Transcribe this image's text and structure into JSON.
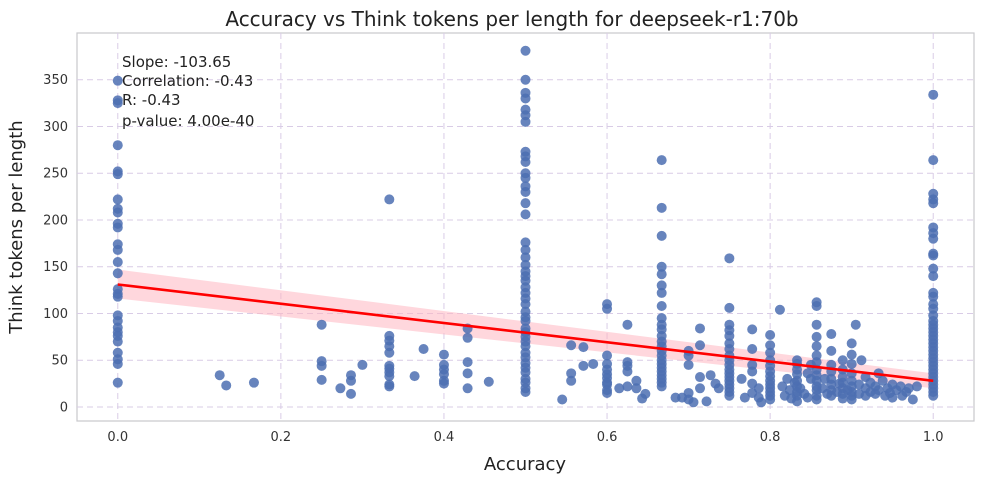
{
  "chart_data": {
    "type": "scatter",
    "title": "Accuracy vs Think tokens per length for deepseek-r1:70b",
    "xlabel": "Accuracy",
    "ylabel": "Think tokens per length",
    "xlim": [
      -0.05,
      1.05
    ],
    "ylim": [
      -15,
      400
    ],
    "xticks": [
      0.0,
      0.2,
      0.4,
      0.6,
      0.8,
      1.0
    ],
    "xtick_labels": [
      "0.0",
      "0.2",
      "0.4",
      "0.6",
      "0.8",
      "1.0"
    ],
    "yticks": [
      0,
      50,
      100,
      150,
      200,
      250,
      300,
      350
    ],
    "ytick_labels": [
      "0",
      "50",
      "100",
      "150",
      "200",
      "250",
      "300",
      "350"
    ],
    "grid": true,
    "stats": {
      "slope": "Slope: -103.65",
      "correlation": "Correlation: -0.43",
      "r": "R: -0.43",
      "pvalue": "p-value: 4.00e-40"
    },
    "point_color": "#4c6fb1",
    "regression": {
      "color": "#ff0000",
      "ci_color": "#ffb6c1",
      "x": [
        0.0,
        1.0
      ],
      "y": [
        131,
        28
      ],
      "ci_upper": [
        147,
        36
      ],
      "ci_lower": [
        116,
        20
      ]
    },
    "points": [
      [
        0.0,
        349
      ],
      [
        0.0,
        328
      ],
      [
        0.0,
        325
      ],
      [
        0.0,
        280
      ],
      [
        0.0,
        252
      ],
      [
        0.0,
        249
      ],
      [
        0.0,
        222
      ],
      [
        0.0,
        212
      ],
      [
        0.0,
        208
      ],
      [
        0.0,
        196
      ],
      [
        0.0,
        192
      ],
      [
        0.0,
        174
      ],
      [
        0.0,
        168
      ],
      [
        0.0,
        155
      ],
      [
        0.0,
        143
      ],
      [
        0.0,
        126
      ],
      [
        0.0,
        121
      ],
      [
        0.0,
        118
      ],
      [
        0.0,
        98
      ],
      [
        0.0,
        92
      ],
      [
        0.0,
        85
      ],
      [
        0.0,
        80
      ],
      [
        0.0,
        76
      ],
      [
        0.0,
        70
      ],
      [
        0.0,
        58
      ],
      [
        0.0,
        51
      ],
      [
        0.0,
        46
      ],
      [
        0.0,
        26
      ],
      [
        0.125,
        34
      ],
      [
        0.133,
        23
      ],
      [
        0.167,
        26
      ],
      [
        0.25,
        88
      ],
      [
        0.25,
        49
      ],
      [
        0.25,
        44
      ],
      [
        0.25,
        29
      ],
      [
        0.273,
        20
      ],
      [
        0.286,
        34
      ],
      [
        0.286,
        28
      ],
      [
        0.3,
        45
      ],
      [
        0.286,
        14
      ],
      [
        0.333,
        222
      ],
      [
        0.333,
        76
      ],
      [
        0.333,
        71
      ],
      [
        0.333,
        65
      ],
      [
        0.333,
        58
      ],
      [
        0.333,
        44
      ],
      [
        0.333,
        41
      ],
      [
        0.333,
        37
      ],
      [
        0.333,
        33
      ],
      [
        0.333,
        24
      ],
      [
        0.333,
        22
      ],
      [
        0.364,
        33
      ],
      [
        0.375,
        62
      ],
      [
        0.4,
        56
      ],
      [
        0.4,
        45
      ],
      [
        0.4,
        40
      ],
      [
        0.4,
        35
      ],
      [
        0.4,
        28
      ],
      [
        0.4,
        25
      ],
      [
        0.429,
        84
      ],
      [
        0.429,
        74
      ],
      [
        0.429,
        48
      ],
      [
        0.429,
        36
      ],
      [
        0.429,
        20
      ],
      [
        0.455,
        27
      ],
      [
        0.5,
        381
      ],
      [
        0.5,
        350
      ],
      [
        0.5,
        336
      ],
      [
        0.5,
        330
      ],
      [
        0.5,
        318
      ],
      [
        0.5,
        312
      ],
      [
        0.5,
        305
      ],
      [
        0.5,
        273
      ],
      [
        0.5,
        268
      ],
      [
        0.5,
        262
      ],
      [
        0.5,
        250
      ],
      [
        0.5,
        245
      ],
      [
        0.5,
        236
      ],
      [
        0.5,
        230
      ],
      [
        0.5,
        218
      ],
      [
        0.5,
        206
      ],
      [
        0.5,
        176
      ],
      [
        0.5,
        168
      ],
      [
        0.5,
        160
      ],
      [
        0.5,
        152
      ],
      [
        0.5,
        145
      ],
      [
        0.5,
        140
      ],
      [
        0.5,
        135
      ],
      [
        0.5,
        128
      ],
      [
        0.5,
        122
      ],
      [
        0.5,
        116
      ],
      [
        0.5,
        110
      ],
      [
        0.5,
        102
      ],
      [
        0.5,
        96
      ],
      [
        0.5,
        92
      ],
      [
        0.5,
        84
      ],
      [
        0.5,
        80
      ],
      [
        0.5,
        75
      ],
      [
        0.5,
        70
      ],
      [
        0.5,
        65
      ],
      [
        0.5,
        58
      ],
      [
        0.5,
        53
      ],
      [
        0.5,
        47
      ],
      [
        0.5,
        42
      ],
      [
        0.5,
        37
      ],
      [
        0.5,
        30
      ],
      [
        0.5,
        26
      ],
      [
        0.5,
        20
      ],
      [
        0.5,
        16
      ],
      [
        0.545,
        8
      ],
      [
        0.556,
        66
      ],
      [
        0.556,
        36
      ],
      [
        0.556,
        28
      ],
      [
        0.571,
        64
      ],
      [
        0.571,
        44
      ],
      [
        0.583,
        46
      ],
      [
        0.6,
        110
      ],
      [
        0.6,
        105
      ],
      [
        0.6,
        55
      ],
      [
        0.6,
        46
      ],
      [
        0.6,
        40
      ],
      [
        0.6,
        35
      ],
      [
        0.6,
        31
      ],
      [
        0.6,
        26
      ],
      [
        0.6,
        24
      ],
      [
        0.6,
        18
      ],
      [
        0.6,
        15
      ],
      [
        0.615,
        20
      ],
      [
        0.625,
        88
      ],
      [
        0.625,
        48
      ],
      [
        0.625,
        44
      ],
      [
        0.625,
        38
      ],
      [
        0.625,
        22
      ],
      [
        0.636,
        28
      ],
      [
        0.636,
        20
      ],
      [
        0.643,
        9
      ],
      [
        0.647,
        14
      ],
      [
        0.667,
        264
      ],
      [
        0.667,
        213
      ],
      [
        0.667,
        183
      ],
      [
        0.667,
        150
      ],
      [
        0.667,
        142
      ],
      [
        0.667,
        130
      ],
      [
        0.667,
        122
      ],
      [
        0.667,
        108
      ],
      [
        0.667,
        95
      ],
      [
        0.667,
        88
      ],
      [
        0.667,
        83
      ],
      [
        0.667,
        76
      ],
      [
        0.667,
        70
      ],
      [
        0.667,
        65
      ],
      [
        0.667,
        60
      ],
      [
        0.667,
        55
      ],
      [
        0.667,
        50
      ],
      [
        0.667,
        46
      ],
      [
        0.667,
        42
      ],
      [
        0.667,
        38
      ],
      [
        0.667,
        34
      ],
      [
        0.667,
        30
      ],
      [
        0.667,
        26
      ],
      [
        0.667,
        22
      ],
      [
        0.684,
        10
      ],
      [
        0.692,
        10
      ],
      [
        0.7,
        15
      ],
      [
        0.7,
        60
      ],
      [
        0.7,
        55
      ],
      [
        0.7,
        45
      ],
      [
        0.7,
        8
      ],
      [
        0.706,
        5
      ],
      [
        0.714,
        84
      ],
      [
        0.714,
        66
      ],
      [
        0.714,
        32
      ],
      [
        0.714,
        20
      ],
      [
        0.722,
        6
      ],
      [
        0.727,
        34
      ],
      [
        0.733,
        25
      ],
      [
        0.737,
        20
      ],
      [
        0.75,
        159
      ],
      [
        0.75,
        106
      ],
      [
        0.75,
        88
      ],
      [
        0.75,
        82
      ],
      [
        0.75,
        76
      ],
      [
        0.75,
        68
      ],
      [
        0.75,
        62
      ],
      [
        0.75,
        55
      ],
      [
        0.75,
        50
      ],
      [
        0.75,
        45
      ],
      [
        0.75,
        40
      ],
      [
        0.75,
        36
      ],
      [
        0.75,
        32
      ],
      [
        0.75,
        28
      ],
      [
        0.75,
        24
      ],
      [
        0.75,
        20
      ],
      [
        0.75,
        16
      ],
      [
        0.75,
        12
      ],
      [
        0.765,
        30
      ],
      [
        0.769,
        10
      ],
      [
        0.778,
        83
      ],
      [
        0.778,
        62
      ],
      [
        0.778,
        45
      ],
      [
        0.778,
        38
      ],
      [
        0.778,
        25
      ],
      [
        0.778,
        15
      ],
      [
        0.786,
        20
      ],
      [
        0.786,
        10
      ],
      [
        0.789,
        5
      ],
      [
        0.8,
        77
      ],
      [
        0.8,
        66
      ],
      [
        0.8,
        58
      ],
      [
        0.8,
        50
      ],
      [
        0.8,
        44
      ],
      [
        0.8,
        38
      ],
      [
        0.8,
        33
      ],
      [
        0.8,
        28
      ],
      [
        0.8,
        24
      ],
      [
        0.8,
        20
      ],
      [
        0.8,
        16
      ],
      [
        0.8,
        12
      ],
      [
        0.8,
        8
      ],
      [
        0.812,
        104
      ],
      [
        0.815,
        22
      ],
      [
        0.818,
        12
      ],
      [
        0.821,
        30
      ],
      [
        0.824,
        18
      ],
      [
        0.826,
        9
      ],
      [
        0.83,
        26
      ],
      [
        0.833,
        50
      ],
      [
        0.833,
        46
      ],
      [
        0.833,
        40
      ],
      [
        0.833,
        35
      ],
      [
        0.833,
        28
      ],
      [
        0.833,
        22
      ],
      [
        0.833,
        16
      ],
      [
        0.833,
        12
      ],
      [
        0.833,
        6
      ],
      [
        0.837,
        20
      ],
      [
        0.842,
        14
      ],
      [
        0.846,
        36
      ],
      [
        0.846,
        10
      ],
      [
        0.85,
        45
      ],
      [
        0.85,
        30
      ],
      [
        0.857,
        112
      ],
      [
        0.857,
        108
      ],
      [
        0.857,
        88
      ],
      [
        0.857,
        75
      ],
      [
        0.857,
        65
      ],
      [
        0.857,
        55
      ],
      [
        0.857,
        48
      ],
      [
        0.857,
        40
      ],
      [
        0.857,
        34
      ],
      [
        0.857,
        28
      ],
      [
        0.857,
        22
      ],
      [
        0.857,
        18
      ],
      [
        0.857,
        12
      ],
      [
        0.857,
        8
      ],
      [
        0.864,
        20
      ],
      [
        0.867,
        30
      ],
      [
        0.87,
        14
      ],
      [
        0.875,
        78
      ],
      [
        0.875,
        60
      ],
      [
        0.875,
        45
      ],
      [
        0.875,
        38
      ],
      [
        0.875,
        30
      ],
      [
        0.875,
        24
      ],
      [
        0.875,
        18
      ],
      [
        0.875,
        12
      ],
      [
        0.882,
        16
      ],
      [
        0.885,
        25
      ],
      [
        0.889,
        50
      ],
      [
        0.889,
        40
      ],
      [
        0.889,
        32
      ],
      [
        0.889,
        26
      ],
      [
        0.889,
        20
      ],
      [
        0.889,
        14
      ],
      [
        0.889,
        9
      ],
      [
        0.895,
        18
      ],
      [
        0.9,
        68
      ],
      [
        0.9,
        56
      ],
      [
        0.9,
        46
      ],
      [
        0.9,
        36
      ],
      [
        0.9,
        28
      ],
      [
        0.9,
        22
      ],
      [
        0.9,
        16
      ],
      [
        0.9,
        12
      ],
      [
        0.9,
        8
      ],
      [
        0.905,
        88
      ],
      [
        0.909,
        24
      ],
      [
        0.909,
        14
      ],
      [
        0.912,
        50
      ],
      [
        0.917,
        32
      ],
      [
        0.917,
        20
      ],
      [
        0.917,
        12
      ],
      [
        0.923,
        26
      ],
      [
        0.923,
        16
      ],
      [
        0.929,
        22
      ],
      [
        0.929,
        14
      ],
      [
        0.933,
        36
      ],
      [
        0.933,
        18
      ],
      [
        0.938,
        28
      ],
      [
        0.941,
        12
      ],
      [
        0.944,
        20
      ],
      [
        0.947,
        15
      ],
      [
        0.95,
        24
      ],
      [
        0.95,
        10
      ],
      [
        0.955,
        18
      ],
      [
        0.96,
        22
      ],
      [
        0.962,
        12
      ],
      [
        0.967,
        16
      ],
      [
        0.97,
        20
      ],
      [
        0.975,
        8
      ],
      [
        0.98,
        22
      ],
      [
        1.0,
        334
      ],
      [
        1.0,
        264
      ],
      [
        1.0,
        228
      ],
      [
        1.0,
        222
      ],
      [
        1.0,
        218
      ],
      [
        1.0,
        192
      ],
      [
        1.0,
        186
      ],
      [
        1.0,
        180
      ],
      [
        1.0,
        164
      ],
      [
        1.0,
        162
      ],
      [
        1.0,
        148
      ],
      [
        1.0,
        140
      ],
      [
        1.0,
        122
      ],
      [
        1.0,
        118
      ],
      [
        1.0,
        110
      ],
      [
        1.0,
        105
      ],
      [
        1.0,
        98
      ],
      [
        1.0,
        92
      ],
      [
        1.0,
        88
      ],
      [
        1.0,
        84
      ],
      [
        1.0,
        80
      ],
      [
        1.0,
        76
      ],
      [
        1.0,
        72
      ],
      [
        1.0,
        68
      ],
      [
        1.0,
        64
      ],
      [
        1.0,
        60
      ],
      [
        1.0,
        56
      ],
      [
        1.0,
        52
      ],
      [
        1.0,
        48
      ],
      [
        1.0,
        44
      ],
      [
        1.0,
        40
      ],
      [
        1.0,
        36
      ],
      [
        1.0,
        32
      ],
      [
        1.0,
        28
      ],
      [
        1.0,
        24
      ],
      [
        1.0,
        20
      ],
      [
        1.0,
        16
      ],
      [
        1.0,
        12
      ]
    ]
  }
}
